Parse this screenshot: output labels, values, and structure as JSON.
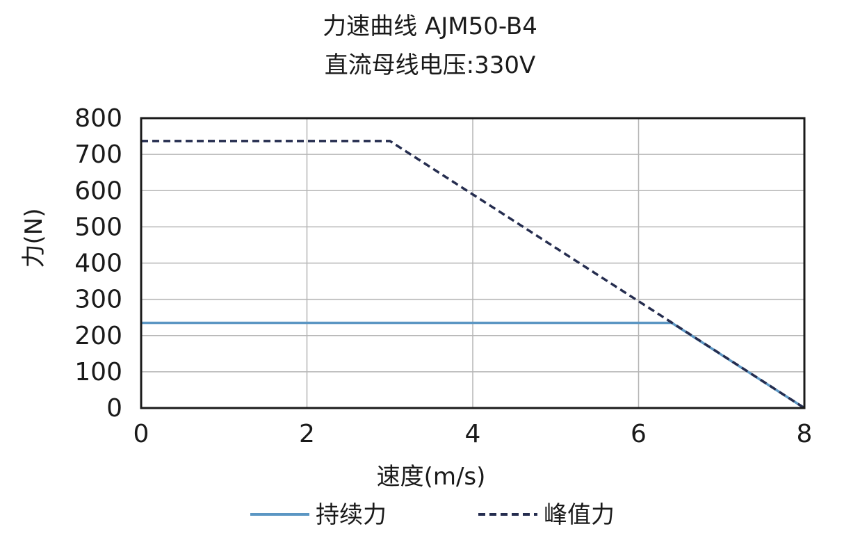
{
  "chart_data": {
    "type": "line",
    "title": "力速曲线 AJM50-B4",
    "subtitle": "直流母线电压:330V",
    "xlabel": "速度(m/s)",
    "ylabel": "力(N)",
    "xlim": [
      0,
      8
    ],
    "ylim": [
      0,
      800
    ],
    "xticks": [
      0,
      2,
      4,
      6,
      8
    ],
    "yticks": [
      0,
      100,
      200,
      300,
      400,
      500,
      600,
      700,
      800
    ],
    "grid": true,
    "legend_position": "bottom",
    "series": [
      {
        "name": "持续力",
        "color": "#5b96c3",
        "style": "solid",
        "x": [
          0,
          6.4,
          8
        ],
        "y": [
          235,
          235,
          0
        ]
      },
      {
        "name": "峰值力",
        "color": "#252d4f",
        "style": "dashed",
        "x": [
          0,
          3.0,
          8
        ],
        "y": [
          737,
          737,
          0
        ]
      }
    ]
  }
}
